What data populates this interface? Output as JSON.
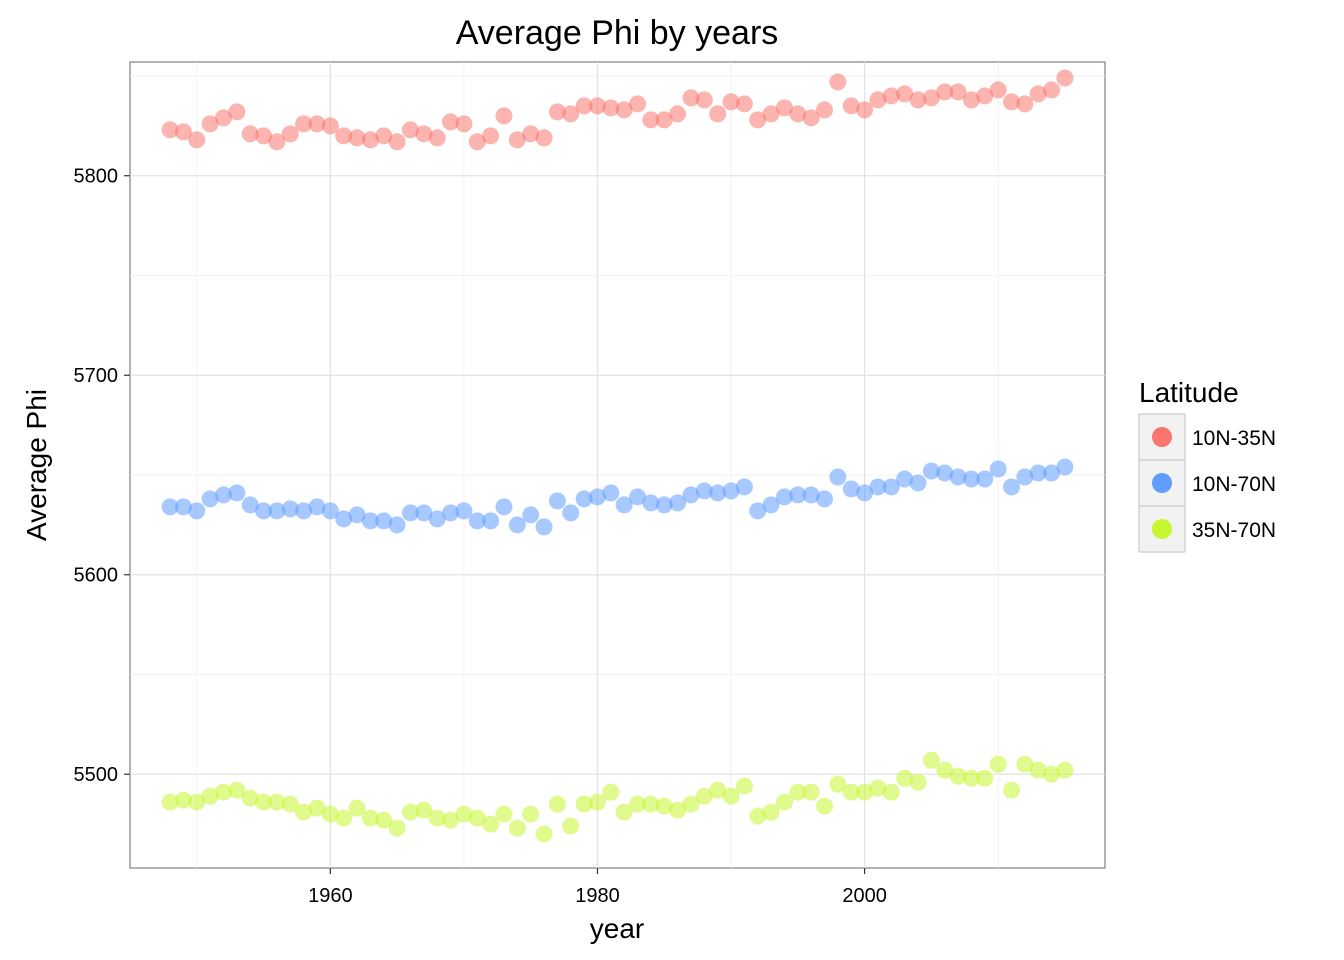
{
  "chart_data": {
    "type": "scatter",
    "title": "Average Phi by years",
    "xlabel": "year",
    "ylabel": "Average Phi",
    "xlim": [
      1945,
      2018
    ],
    "ylim": [
      5453,
      5857
    ],
    "x_ticks": [
      1960,
      1980,
      2000
    ],
    "y_ticks": [
      5500,
      5600,
      5700,
      5800
    ],
    "x_tick_labels": [
      "1960",
      "1980",
      "2000"
    ],
    "y_tick_labels": [
      "5500",
      "5600",
      "5700",
      "5800"
    ],
    "grid": true,
    "legend": {
      "title": "Latitude",
      "position": "right"
    },
    "x": [
      1948,
      1949,
      1950,
      1951,
      1952,
      1953,
      1954,
      1955,
      1956,
      1957,
      1958,
      1959,
      1960,
      1961,
      1962,
      1963,
      1964,
      1965,
      1966,
      1967,
      1968,
      1969,
      1970,
      1971,
      1972,
      1973,
      1974,
      1975,
      1976,
      1977,
      1978,
      1979,
      1980,
      1981,
      1982,
      1983,
      1984,
      1985,
      1986,
      1987,
      1988,
      1989,
      1990,
      1991,
      1992,
      1993,
      1994,
      1995,
      1996,
      1997,
      1998,
      1999,
      2000,
      2001,
      2002,
      2003,
      2004,
      2005,
      2006,
      2007,
      2008,
      2009,
      2010,
      2011,
      2012,
      2013,
      2014,
      2015
    ],
    "series": [
      {
        "name": "10N-35N",
        "color": "#f8766d",
        "values": [
          5823,
          5822,
          5818,
          5826,
          5829,
          5832,
          5821,
          5820,
          5817,
          5821,
          5826,
          5826,
          5825,
          5820,
          5819,
          5818,
          5820,
          5817,
          5823,
          5821,
          5819,
          5827,
          5826,
          5817,
          5820,
          5830,
          5818,
          5821,
          5819,
          5832,
          5831,
          5835,
          5835,
          5834,
          5833,
          5836,
          5828,
          5828,
          5831,
          5839,
          5838,
          5831,
          5837,
          5836,
          5828,
          5831,
          5834,
          5831,
          5829,
          5833,
          5847,
          5835,
          5833,
          5838,
          5840,
          5841,
          5838,
          5839,
          5842,
          5842,
          5838,
          5840,
          5843,
          5837,
          5836,
          5841,
          5843,
          5849
        ]
      },
      {
        "name": "10N-70N",
        "color": "#619cff",
        "values": [
          5634,
          5634,
          5632,
          5638,
          5640,
          5641,
          5635,
          5632,
          5632,
          5633,
          5632,
          5634,
          5632,
          5628,
          5630,
          5627,
          5627,
          5625,
          5631,
          5631,
          5628,
          5631,
          5632,
          5627,
          5627,
          5634,
          5625,
          5630,
          5624,
          5637,
          5631,
          5638,
          5639,
          5641,
          5635,
          5639,
          5636,
          5635,
          5636,
          5640,
          5642,
          5641,
          5642,
          5644,
          5632,
          5635,
          5639,
          5640,
          5640,
          5638,
          5649,
          5643,
          5641,
          5644,
          5644,
          5648,
          5646,
          5652,
          5651,
          5649,
          5648,
          5648,
          5653,
          5644,
          5649,
          5651,
          5651,
          5654
        ]
      },
      {
        "name": "35N-70N",
        "color": "#c7f530",
        "values": [
          5486,
          5487,
          5486,
          5489,
          5491,
          5492,
          5488,
          5486,
          5486,
          5485,
          5481,
          5483,
          5480,
          5478,
          5483,
          5478,
          5477,
          5473,
          5481,
          5482,
          5478,
          5477,
          5480,
          5478,
          5475,
          5480,
          5473,
          5480,
          5470,
          5485,
          5474,
          5485,
          5486,
          5491,
          5481,
          5485,
          5485,
          5484,
          5482,
          5485,
          5489,
          5492,
          5489,
          5494,
          5479,
          5481,
          5486,
          5491,
          5491,
          5484,
          5495,
          5491,
          5491,
          5493,
          5491,
          5498,
          5496,
          5507,
          5502,
          5499,
          5498,
          5498,
          5505,
          5492,
          5505,
          5502,
          5500,
          5502
        ]
      }
    ]
  }
}
